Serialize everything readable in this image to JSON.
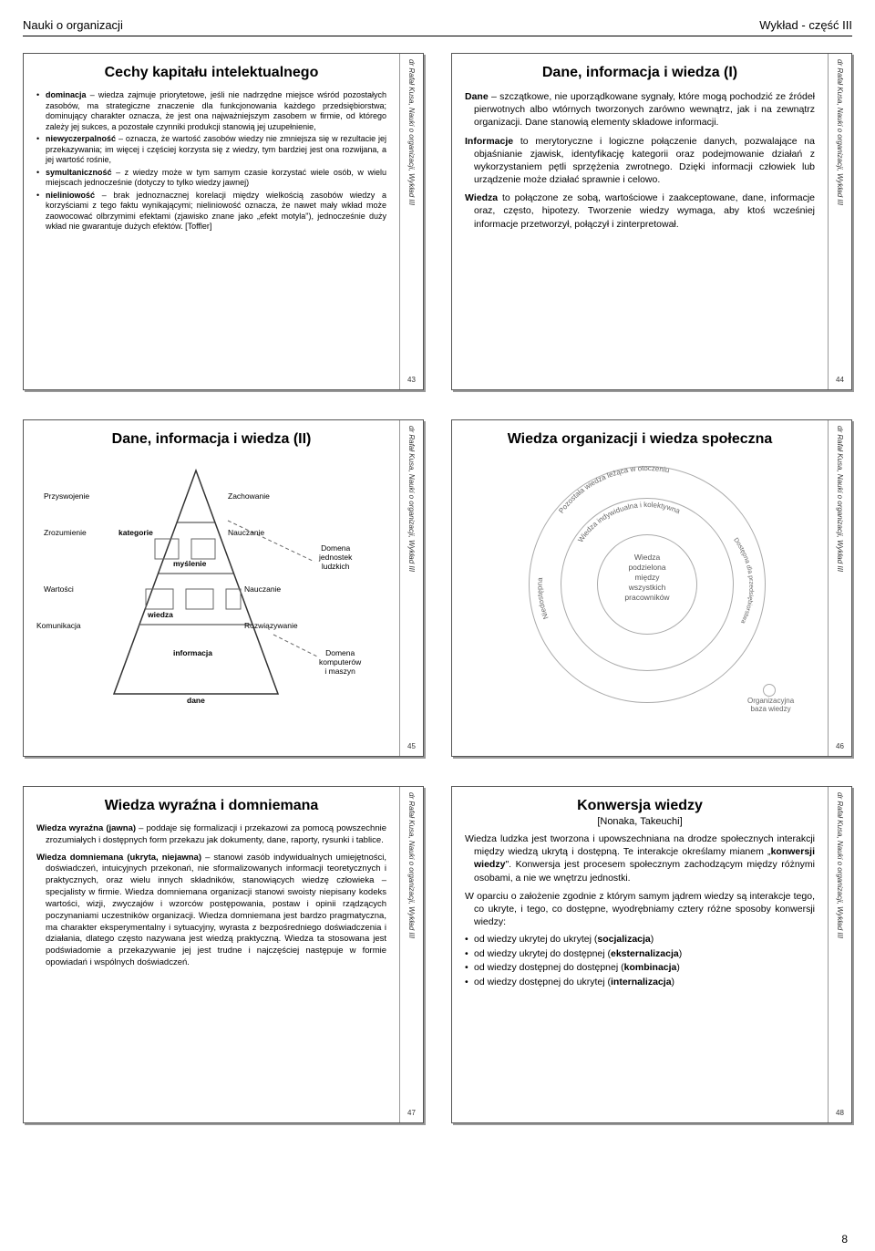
{
  "header": {
    "left": "Nauki o organizacji",
    "right": "Wykład - część III"
  },
  "page_number": "8",
  "sidebar_credit": "dr Rafał Kusa, Nauki o organizacji, Wykład III",
  "slides": {
    "s43": {
      "num": "43",
      "title": "Cechy kapitału intelektualnego",
      "bullets": [
        "<b>dominacja</b> – wiedza zajmuje priorytetowe, jeśli nie nadrzędne miejsce wśród pozostałych zasobów, ma strategiczne znaczenie dla funkcjonowania każdego przedsiębiorstwa; dominujący charakter oznacza, że jest ona najważniejszym zasobem w firmie, od którego zależy jej sukces, a pozostałe czynniki produkcji stanowią jej uzupełnienie,",
        "<b>niewyczerpalność</b> – oznacza, że wartość zasobów wiedzy nie zmniejsza się w rezultacie jej przekazywania; im więcej i częściej korzysta się z wiedzy, tym bardziej jest ona rozwijana, a jej wartość rośnie,",
        "<b>symultaniczność</b> – z wiedzy może w tym samym czasie korzystać wiele osób, w wielu miejscach jednocześnie (dotyczy to tylko wiedzy jawnej)",
        "<b>nieliniowość</b> – brak jednoznacznej korelacji między wielkością zasobów wiedzy a korzyściami z tego faktu wynikającymi; nieliniowość oznacza, że nawet mały wkład może zaowocować olbrzymimi efektami (zjawisko znane jako „efekt motyla\"), jednocześnie duży wkład nie gwarantuje dużych efektów.      [Toffler]"
      ]
    },
    "s44": {
      "num": "44",
      "title": "Dane, informacja i wiedza  (I)",
      "paras": [
        "<b>Dane</b> – szczątkowe, nie uporządkowane sygnały, które mogą pochodzić ze źródeł pierwotnych albo wtórnych tworzonych zarówno wewnątrz, jak i na zewnątrz organizacji. Dane stanowią elementy składowe informacji.",
        "<b>Informacje</b> to merytoryczne i logiczne połączenie danych, pozwalające na objaśnianie zjawisk, identyfikację kategorii oraz podejmowanie działań z wykorzystaniem pętli sprzężenia zwrotnego. Dzięki informacji człowiek lub urządzenie może działać sprawnie i celowo.",
        "<b>Wiedza</b> to połączone ze sobą, wartościowe i zaakceptowane, dane, informacje oraz, często, hipotezy. Tworzenie wiedzy wymaga, aby ktoś wcześniej informacje przetworzył, połączył i zinterpretował."
      ]
    },
    "s45": {
      "num": "45",
      "title": "Dane, informacja i wiedza  (II)",
      "labels": {
        "l1": "Przyswojenie",
        "l2": "Zrozumienie",
        "l3": "Wartości",
        "l4": "Komunikacja",
        "r1": "Zachowanie",
        "r2": "Nauczanie",
        "r3": "Nauczanie",
        "r4": "Rozwiązywanie",
        "t1": "kategorie",
        "t2": "myślenie",
        "t3": "wiedza",
        "t4": "informacja",
        "t5": "dane",
        "d1": "Domena\njednostek\nludzkich",
        "d2": "Domena\nkomputerów\ni maszyn"
      },
      "style": {
        "triangle_border": "#333",
        "triangle_bg": "#ffffff",
        "dash_color": "#666"
      }
    },
    "s46": {
      "num": "46",
      "title": "Wiedza organizacji i wiedza społeczna",
      "center": "Wiedza\npodzielona\nmiędzy\nwszystkich\npracowników",
      "arc_text": {
        "outer": "Pozostała wiedza leżąca w otoczeniu",
        "mid": "Wiedza indywidualna i kolektywna"
      },
      "side_left": "Niedostępna",
      "side_right": "Dostępna dla przedsiębiorstwa",
      "org_base_label": "Organizacyjna\nbaza wiedzy",
      "style": {
        "circle_color": "#aaaaaa",
        "text_color": "#666666"
      }
    },
    "s47": {
      "num": "47",
      "title": "Wiedza wyraźna i domniemana",
      "paras": [
        "<b>Wiedza wyraźna (jawna)</b> – poddaje się formalizacji i przekazowi za pomocą powszechnie zrozumiałych i dostępnych form przekazu jak dokumenty, dane, raporty, rysunki i tablice.",
        "<b>Wiedza domniemana (ukryta, niejawna)</b> – stanowi zasób indywidualnych umiejętności, doświadczeń, intuicyjnych przekonań, nie sformalizowanych informacji teoretycznych i praktycznych, oraz wielu innych składników, stanowiących wiedzę człowieka – specjalisty w firmie. Wiedza domniemana organizacji stanowi swoisty niepisany kodeks wartości, wizji, zwyczajów i wzorców postępowania, postaw i opinii rządzących poczynaniami uczestników organizacji. Wiedza domniemana jest bardzo pragmatyczna, ma charakter eksperymentalny i sytuacyjny, wyrasta z bezpośredniego doświadczenia i działania, dlatego często nazywana jest wiedzą praktyczną. Wiedza ta stosowana jest podświadomie a przekazywanie jej jest trudne i najczęściej następuje w formie opowiadań i wspólnych doświadczeń."
      ]
    },
    "s48": {
      "num": "48",
      "title": "Konwersja wiedzy",
      "subtitle": "[Nonaka, Takeuchi]",
      "paras": [
        "Wiedza ludzka jest tworzona i upowszechniana na drodze społecznych interakcji między wiedzą ukrytą i dostępną. Te interakcje określamy mianem „<b>konwersji wiedzy</b>\". Konwersja jest procesem społecznym zachodzącym między różnymi osobami, a nie we wnętrzu jednostki.",
        "W oparciu o założenie zgodnie z którym samym jądrem wiedzy są interakcje tego, co ukryte, i tego, co dostępne, wyodrębniamy cztery różne sposoby konwersji wiedzy:"
      ],
      "bullets": [
        "od wiedzy ukrytej do ukrytej (<b>socjalizacja</b>)",
        "od wiedzy ukrytej do dostępnej (<b>eksternalizacja</b>)",
        "od wiedzy dostępnej do dostępnej (<b>kombinacja</b>)",
        "od wiedzy dostępnej do ukrytej (<b>internalizacja</b>)"
      ]
    }
  }
}
